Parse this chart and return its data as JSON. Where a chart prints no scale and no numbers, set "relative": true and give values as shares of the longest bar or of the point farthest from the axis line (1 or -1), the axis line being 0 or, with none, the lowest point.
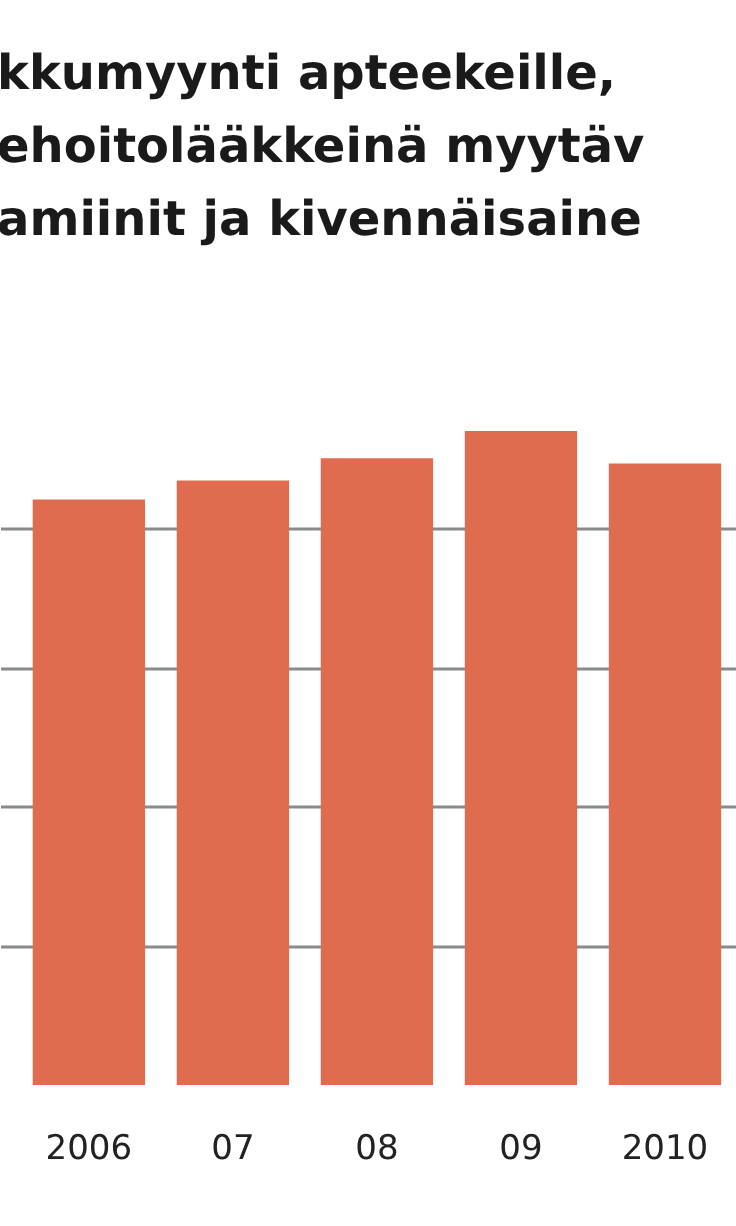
{
  "chart_data": {
    "type": "bar",
    "title": "kkumyynti apteekeille,\nehoitolääkkeinä myytäv\namiinit ja kivennäisaine",
    "categories": [
      "2006",
      "07",
      "08",
      "09",
      "2010"
    ],
    "values": [
      0.895,
      0.924,
      0.958,
      1.0,
      0.95
    ],
    "color": "#e06c4f",
    "relative": true,
    "grid": "y"
  }
}
